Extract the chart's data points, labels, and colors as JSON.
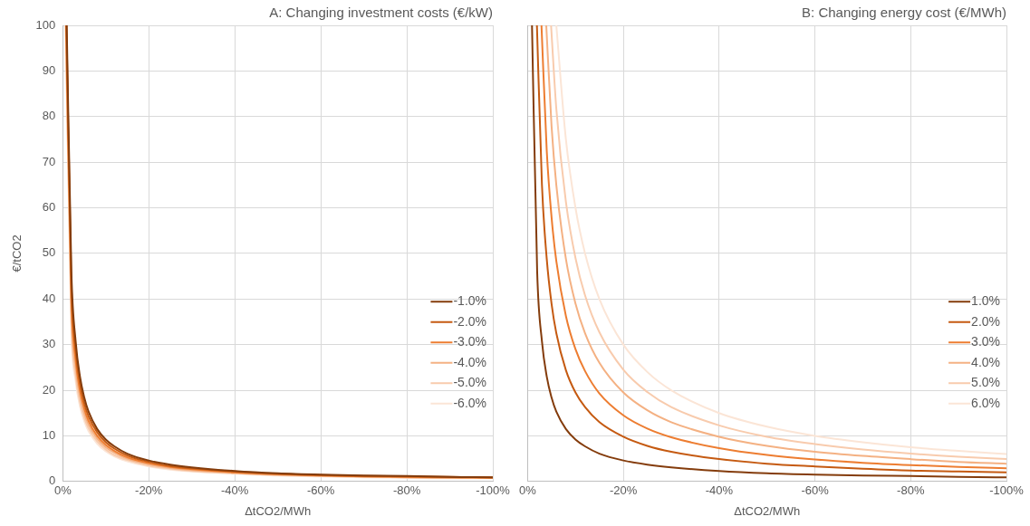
{
  "chart_data": [
    {
      "type": "line",
      "title": "A: Changing investment costs (€/kW)",
      "xlabel": "ΔtCO2/MWh",
      "ylabel": "€/tCO2",
      "xlim": [
        0,
        -100
      ],
      "xticks": [
        {
          "value": 0,
          "label": "0%"
        },
        {
          "value": -20,
          "label": "-20%"
        },
        {
          "value": -40,
          "label": "-40%"
        },
        {
          "value": -60,
          "label": "-60%"
        },
        {
          "value": -80,
          "label": "-80%"
        },
        {
          "value": -100,
          "label": "-100%"
        }
      ],
      "ylim": [
        0,
        100
      ],
      "yticks": [
        0,
        10,
        20,
        30,
        40,
        50,
        60,
        70,
        80,
        90,
        100
      ],
      "grid": true,
      "legend": "right",
      "marker": "none",
      "line_style": "solid",
      "series": [
        {
          "name": "-1.0%",
          "color": "#843c0c",
          "x": [
            -0.92,
            -2,
            -3,
            -4,
            -5,
            -6,
            -8,
            -10,
            -12,
            -15,
            -20,
            -25,
            -30,
            -40,
            -50,
            -60,
            -70,
            -80,
            -90,
            -100
          ],
          "values": [
            100,
            46,
            30.7,
            23,
            18.4,
            15.3,
            11.5,
            9.2,
            7.7,
            6.1,
            4.6,
            3.7,
            3.1,
            2.3,
            1.8,
            1.5,
            1.3,
            1.2,
            1.0,
            0.9
          ]
        },
        {
          "name": "-2.0%",
          "color": "#c55a11",
          "x": [
            -0.86,
            -2,
            -3,
            -4,
            -5,
            -6,
            -8,
            -10,
            -12,
            -15,
            -20,
            -25,
            -30,
            -40,
            -50,
            -60,
            -70,
            -80,
            -90,
            -100
          ],
          "values": [
            100,
            43,
            28.7,
            21.5,
            17.2,
            14.3,
            10.8,
            8.6,
            7.2,
            5.7,
            4.3,
            3.4,
            2.9,
            2.2,
            1.7,
            1.4,
            1.2,
            1.1,
            1.0,
            0.9
          ]
        },
        {
          "name": "-3.0%",
          "color": "#ed7d31",
          "x": [
            -0.8,
            -2,
            -3,
            -4,
            -5,
            -6,
            -8,
            -10,
            -12,
            -15,
            -20,
            -25,
            -30,
            -40,
            -50,
            -60,
            -70,
            -80,
            -90,
            -100
          ],
          "values": [
            100,
            40,
            26.7,
            20,
            16,
            13.3,
            10,
            8,
            6.7,
            5.3,
            4,
            3.2,
            2.7,
            2,
            1.6,
            1.3,
            1.1,
            1.0,
            0.9,
            0.8
          ]
        },
        {
          "name": "-4.0%",
          "color": "#f4b183",
          "x": [
            -0.75,
            -2,
            -3,
            -4,
            -5,
            -6,
            -8,
            -10,
            -12,
            -15,
            -20,
            -25,
            -30,
            -40,
            -50,
            -60,
            -70,
            -80,
            -90,
            -100
          ],
          "values": [
            100,
            37.5,
            25,
            18.8,
            15,
            12.5,
            9.4,
            7.5,
            6.3,
            5,
            3.8,
            3,
            2.5,
            1.9,
            1.5,
            1.3,
            1.1,
            0.9,
            0.8,
            0.8
          ]
        },
        {
          "name": "-5.0%",
          "color": "#f8cbad",
          "x": [
            -0.7,
            -2,
            -3,
            -4,
            -5,
            -6,
            -8,
            -10,
            -12,
            -15,
            -20,
            -25,
            -30,
            -40,
            -50,
            -60,
            -70,
            -80,
            -90
          ],
          "values": [
            100,
            35,
            23.3,
            17.5,
            14,
            11.7,
            8.8,
            7,
            5.8,
            4.7,
            3.5,
            2.8,
            2.3,
            1.8,
            1.4,
            1.2,
            1.0,
            0.9,
            0.8
          ]
        },
        {
          "name": "-6.0%",
          "color": "#fbe5d6",
          "x": [
            -0.66,
            -2,
            -3,
            -4,
            -5,
            -6,
            -8,
            -10,
            -12,
            -15,
            -20,
            -25,
            -30,
            -40,
            -50,
            -60,
            -70,
            -80,
            -90,
            -100
          ],
          "values": [
            100,
            33,
            22,
            16.5,
            13.2,
            11,
            8.3,
            6.6,
            5.5,
            4.4,
            3.3,
            2.6,
            2.2,
            1.7,
            1.3,
            1.1,
            0.9,
            0.8,
            0.7,
            0.7
          ]
        }
      ]
    },
    {
      "type": "line",
      "title": "B: Changing energy cost (€/MWh)",
      "xlabel": "ΔtCO2/MWh",
      "xlim": [
        0,
        -100
      ],
      "xticks": [
        {
          "value": 0,
          "label": "0%"
        },
        {
          "value": -20,
          "label": "-20%"
        },
        {
          "value": -40,
          "label": "-40%"
        },
        {
          "value": -60,
          "label": "-60%"
        },
        {
          "value": -80,
          "label": "-80%"
        },
        {
          "value": -100,
          "label": "-100%"
        }
      ],
      "ylim": [
        0,
        100
      ],
      "yticks": [
        0,
        10,
        20,
        30,
        40,
        50,
        60,
        70,
        80,
        90,
        100
      ],
      "tick_labels": "x",
      "grid": true,
      "legend": "right",
      "marker": "none",
      "line_style": "solid",
      "series": [
        {
          "name": "1.0%",
          "color": "#843c0c",
          "x": [
            -0.92,
            -2,
            -3,
            -4,
            -5,
            -6,
            -8,
            -10,
            -12,
            -15,
            -20,
            -25,
            -30,
            -40,
            -50,
            -60,
            -70,
            -80,
            -90,
            -100
          ],
          "values": [
            100,
            46,
            30.7,
            23,
            18.4,
            15.3,
            11.5,
            9.2,
            7.7,
            6.1,
            4.6,
            3.7,
            3.1,
            2.3,
            1.8,
            1.5,
            1.3,
            1.2,
            1.0,
            0.9
          ]
        },
        {
          "name": "2.0%",
          "color": "#c55a11",
          "x": [
            -1.95,
            -3,
            -4,
            -5,
            -6,
            -8,
            -10,
            -12,
            -15,
            -20,
            -25,
            -30,
            -40,
            -50,
            -60,
            -70,
            -80,
            -90,
            -100
          ],
          "values": [
            100,
            65,
            48.8,
            39,
            32.5,
            24.4,
            19.5,
            16.3,
            13,
            9.8,
            7.8,
            6.5,
            4.9,
            3.9,
            3.3,
            2.8,
            2.4,
            2.2,
            2.0
          ]
        },
        {
          "name": "3.0%",
          "color": "#ed7d31",
          "x": [
            -2.9,
            -4,
            -5,
            -6,
            -8,
            -10,
            -12,
            -15,
            -20,
            -25,
            -30,
            -40,
            -50,
            -60,
            -70,
            -80,
            -90,
            -100
          ],
          "values": [
            100,
            72.5,
            58,
            48.3,
            36.3,
            29,
            24.2,
            19.3,
            14.5,
            11.6,
            9.7,
            7.3,
            5.8,
            4.8,
            4.1,
            3.6,
            3.2,
            2.9
          ]
        },
        {
          "name": "4.0%",
          "color": "#f4b183",
          "x": [
            -3.9,
            -5,
            -6,
            -8,
            -10,
            -12,
            -15,
            -20,
            -25,
            -30,
            -40,
            -50,
            -60,
            -70,
            -80,
            -90,
            -100
          ],
          "values": [
            100,
            78,
            65,
            48.8,
            39,
            32.5,
            26,
            19.5,
            15.6,
            13,
            9.8,
            7.8,
            6.5,
            5.6,
            4.9,
            4.3,
            3.9
          ]
        },
        {
          "name": "5.0%",
          "color": "#f8cbad",
          "x": [
            -4.9,
            -6,
            -8,
            -10,
            -12,
            -15,
            -20,
            -25,
            -30,
            -40,
            -50,
            -60,
            -70,
            -80,
            -90,
            -100
          ],
          "values": [
            100,
            81.7,
            61.3,
            49,
            40.8,
            32.7,
            24.5,
            19.6,
            16.3,
            12.3,
            9.8,
            8.2,
            7,
            6.1,
            5.4,
            4.9
          ]
        },
        {
          "name": "6.0%",
          "color": "#fbe5d6",
          "x": [
            -6,
            -8,
            -10,
            -12,
            -15,
            -20,
            -25,
            -30,
            -40,
            -50,
            -60,
            -70,
            -80,
            -90,
            -100
          ],
          "values": [
            100,
            75,
            60,
            50,
            40,
            30,
            24,
            20,
            15,
            12,
            10,
            8.6,
            7.5,
            6.7,
            6.0
          ]
        }
      ]
    }
  ]
}
